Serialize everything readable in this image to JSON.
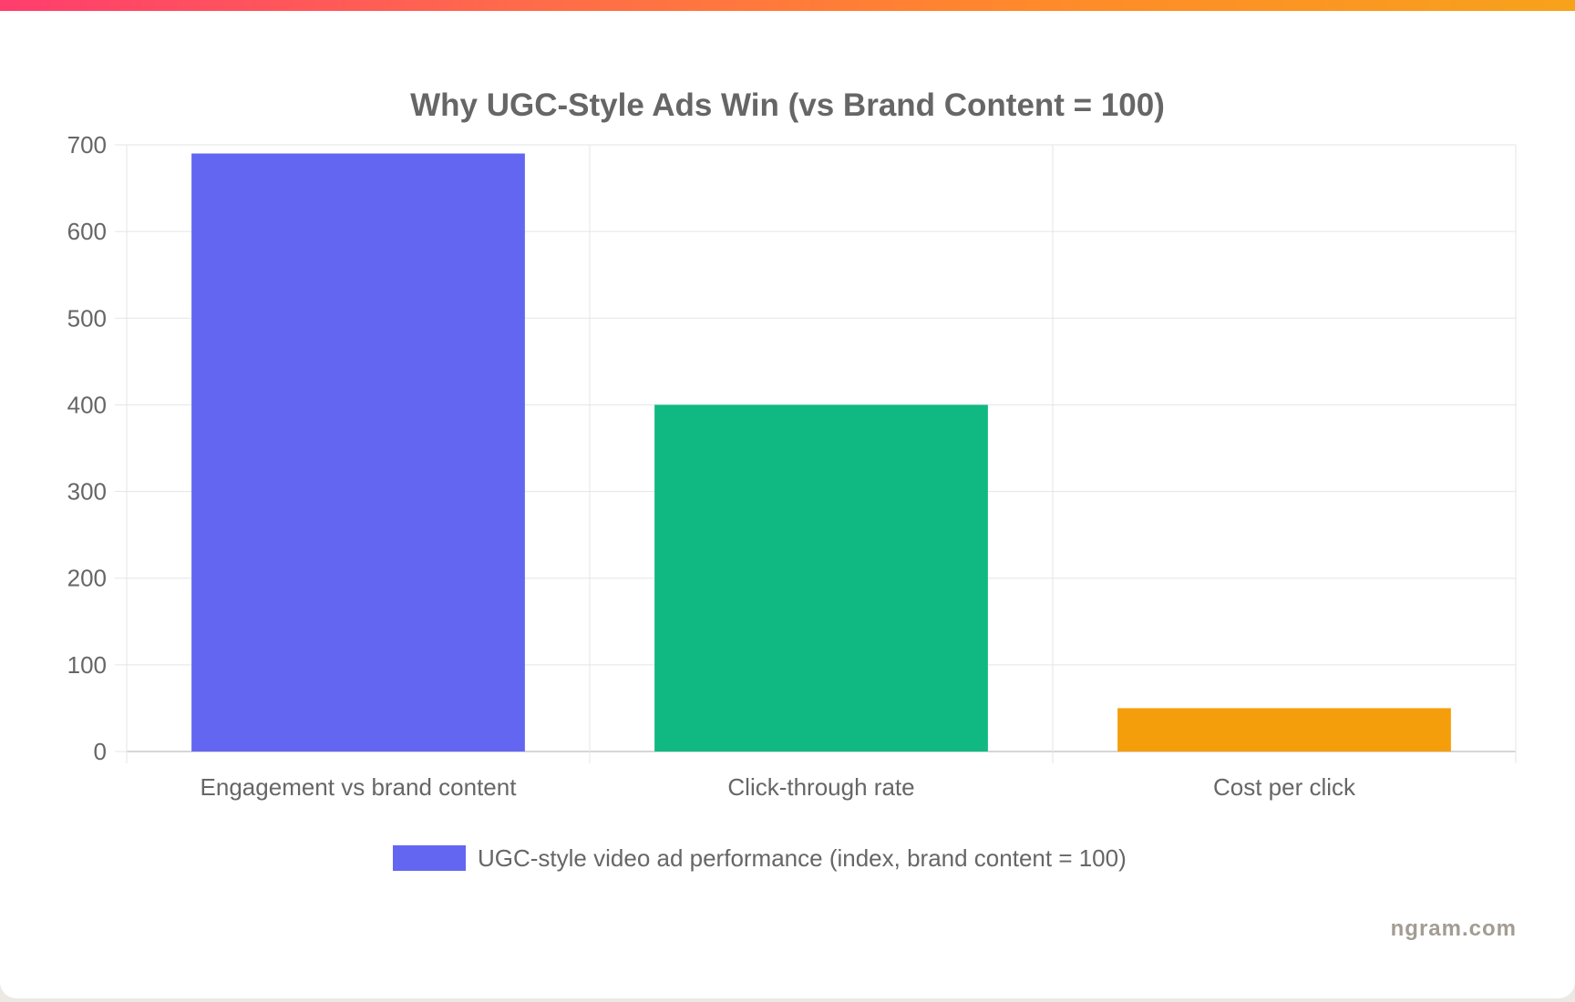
{
  "brand": {
    "watermark": "ngram.com",
    "accent_gradient": [
      "#ff3d6e",
      "#ff6b4a",
      "#ff8a2a",
      "#f7a21b"
    ]
  },
  "chart_data": {
    "type": "bar",
    "title": "Why UGC-Style Ads Win (vs Brand Content = 100)",
    "categories": [
      "Engagement vs brand content",
      "Click-through rate",
      "Cost per click"
    ],
    "series": [
      {
        "name": "UGC-style video ad performance (index, brand content = 100)",
        "values": [
          690,
          400,
          50
        ],
        "colors": [
          "#6366f1",
          "#10b981",
          "#f59e0b"
        ]
      }
    ],
    "ylim": [
      0,
      700
    ],
    "yticks": [
      0,
      100,
      200,
      300,
      400,
      500,
      600,
      700
    ],
    "xlabel": "",
    "ylabel": "",
    "grid": true,
    "legend_position": "bottom",
    "legend_color": "#6366f1"
  }
}
